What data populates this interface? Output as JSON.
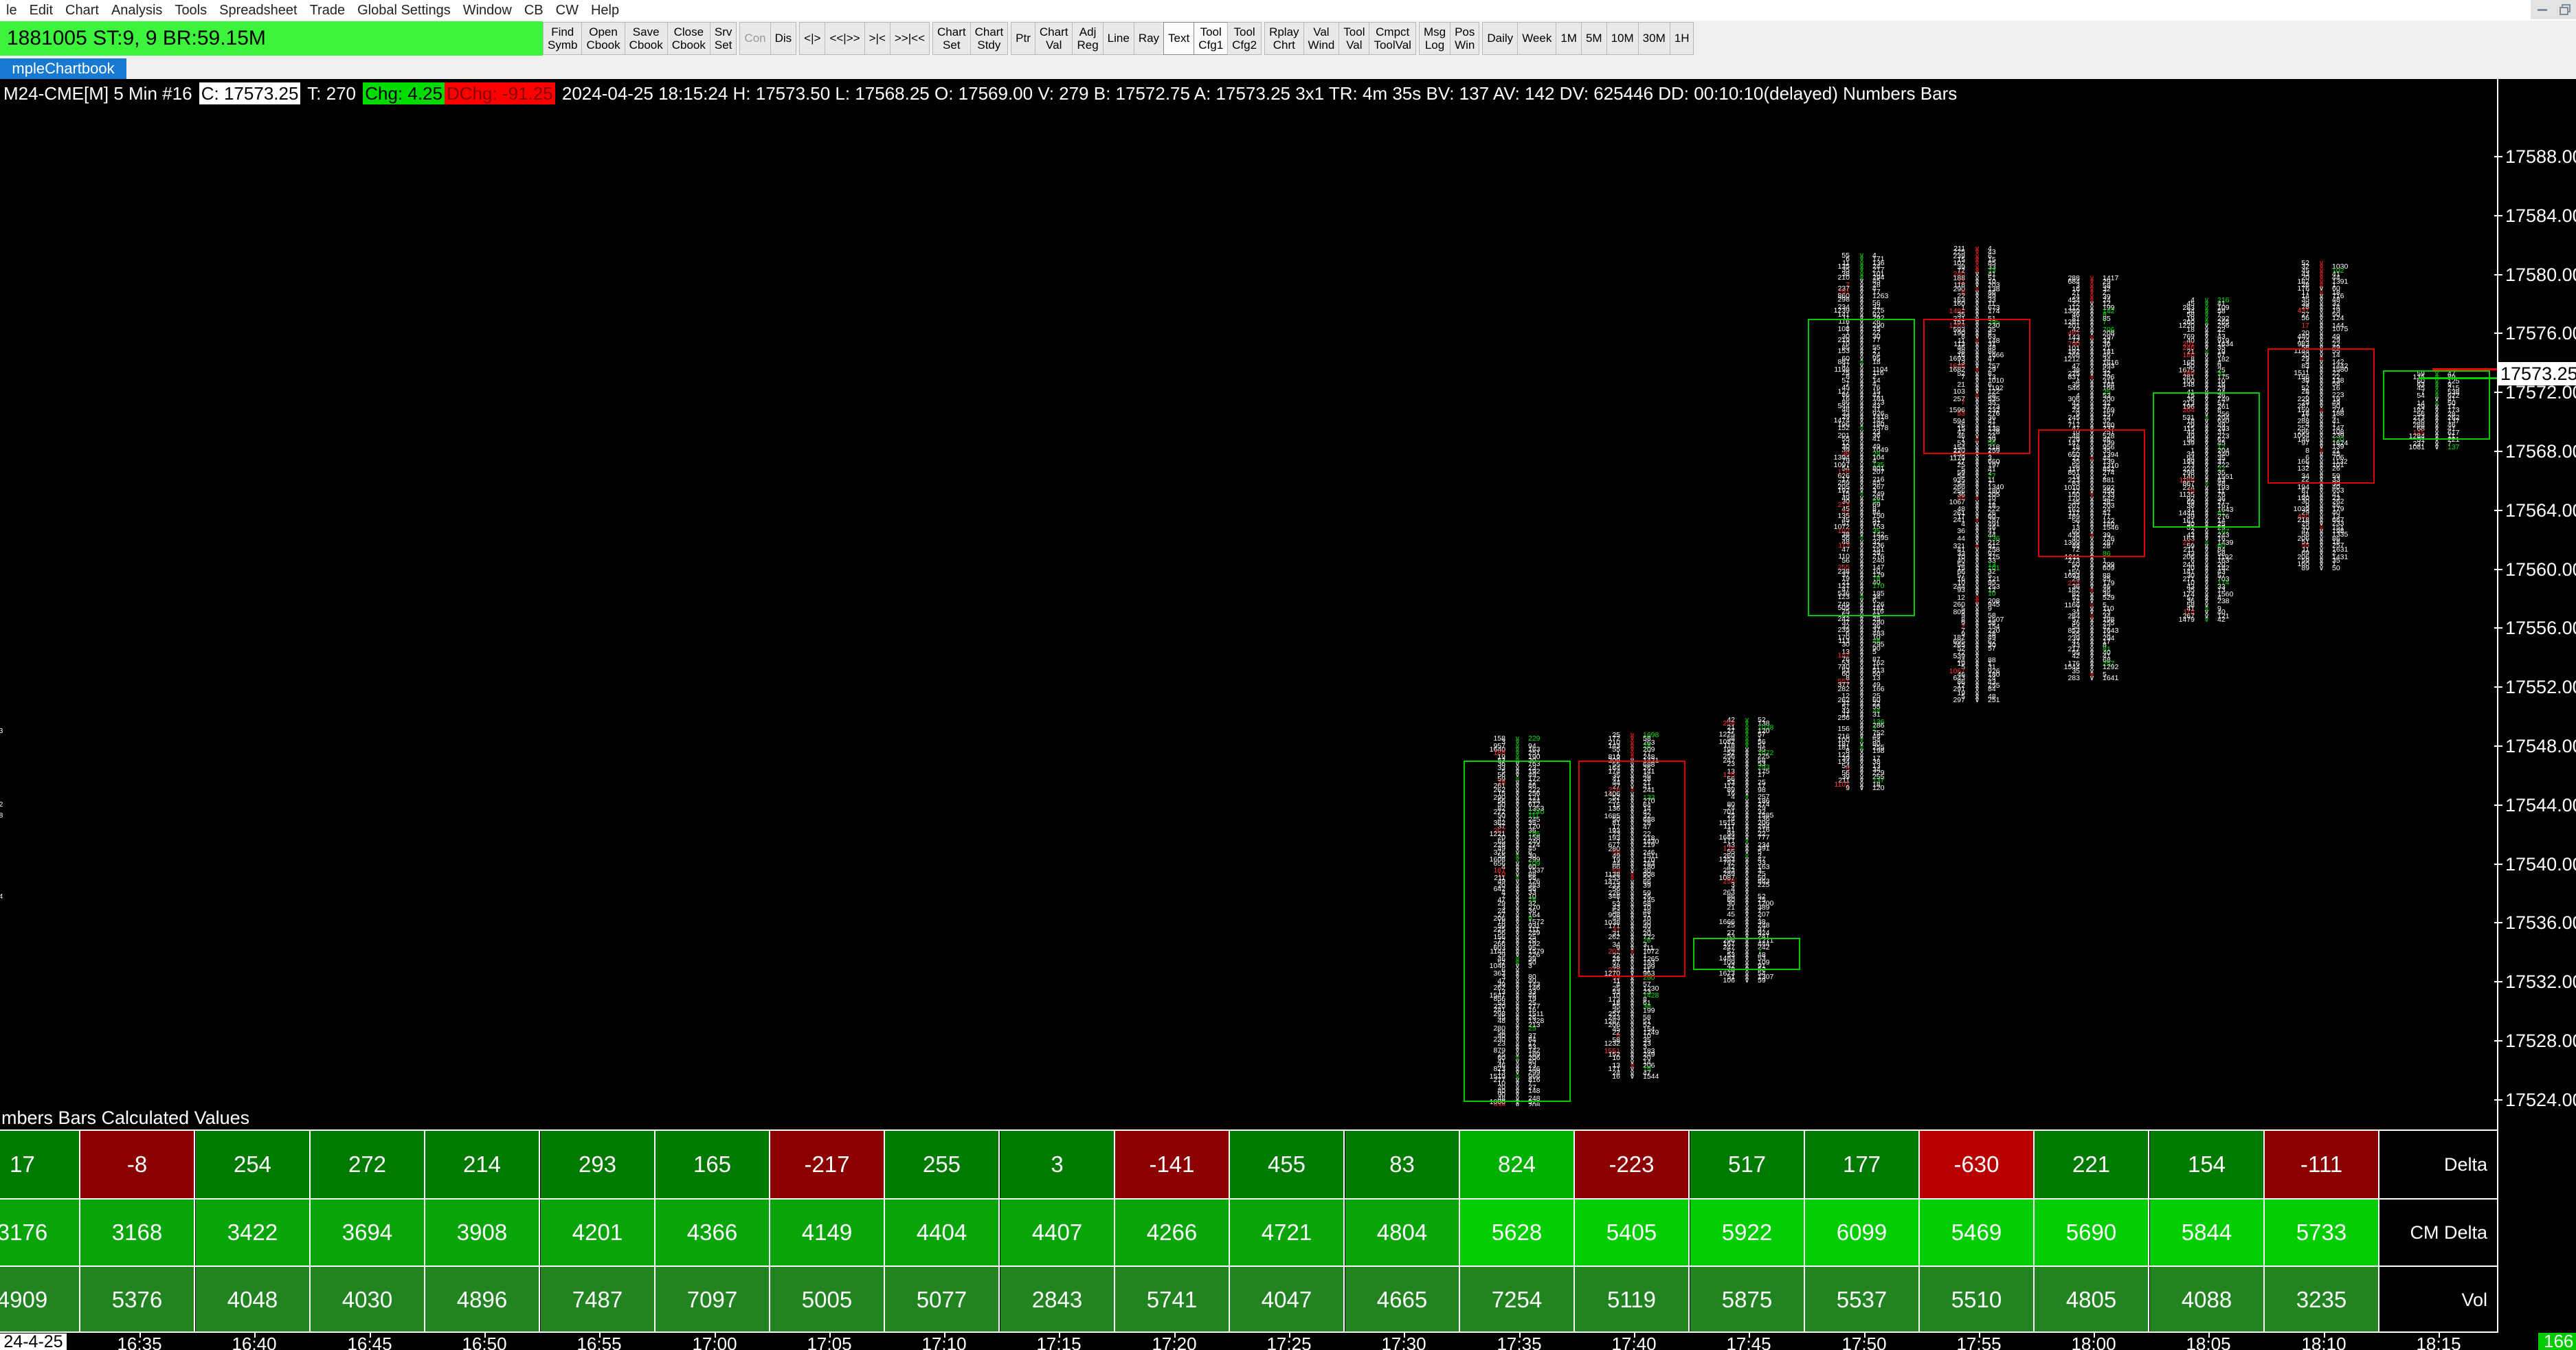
{
  "menu_bar": {
    "items": [
      "le",
      "Edit",
      "Chart",
      "Analysis",
      "Tools",
      "Spreadsheet",
      "Trade",
      "Global Settings",
      "Window",
      "CB",
      "CW",
      "Help"
    ]
  },
  "window_controls": {
    "minimize": "minimize",
    "restore": "restore"
  },
  "account_bar": {
    "text": "1881005  ST:9, 9  BR:59.15M",
    "bg": "#3df43d"
  },
  "toolbar": {
    "groups": [
      [
        "Find\nSymb",
        "Open\nCbook",
        "Save\nCbook",
        "Close\nCbook",
        "Srv\nSet"
      ],
      [
        "Con",
        "Dis"
      ],
      [
        "<|>",
        "<<|>>",
        ">|<",
        ">>|<<"
      ],
      [
        "Chart\nSet",
        "Chart\nStdy"
      ],
      [
        "Ptr",
        "Chart\nVal",
        "Adj\nReg",
        "Line",
        "Ray",
        "Text",
        "Tool\nCfg1",
        "Tool\nCfg2"
      ],
      [
        "Rplay\nChrt",
        "Val\nWind",
        "Tool\nVal",
        "Cmpct\nToolVal"
      ],
      [
        "Msg\nLog",
        "Pos\nWin"
      ],
      [
        "Daily",
        "Week",
        "1M",
        "5M",
        "10M",
        "30M",
        "1H"
      ]
    ],
    "active": [
      "Text",
      "Tool\nCfg1"
    ],
    "disabled": [
      "Con"
    ]
  },
  "tab": {
    "label": "mpleChartbook",
    "bg": "#1879d2"
  },
  "chart": {
    "header_segments": [
      {
        "text": "M24-CME[M]  5 Min  #16 "
      },
      {
        "text": "C: 17573.25",
        "fg": "#000000",
        "bg": "#ffffff"
      },
      {
        "text": " T: 270 "
      },
      {
        "text": "Chg: 4.25",
        "fg": "#000000",
        "bg": "#00dc00"
      },
      {
        "text": "DChg: -91.25",
        "fg": "#870000",
        "bg": "#ff0000"
      },
      {
        "text": " 2024-04-25 18:15:24 H: 17573.50 L: 17568.25 O: 17569.00 V: 279 B: 17572.75 A: 17573.25 3x1 TR: 4m 35s BV: 137 AV: 142 DV: 625446 DD: 00:10:10(delayed) Numbers Bars"
      }
    ],
    "price_axis": {
      "labels": [
        "17588.00",
        "17584.00",
        "17580.00",
        "17576.00",
        "17572.00",
        "17568.00",
        "17564.00",
        "17560.00",
        "17556.00",
        "17552.00",
        "17548.00",
        "17544.00",
        "17540.00",
        "17536.00",
        "17532.00",
        "17528.00",
        "17524.00"
      ],
      "top_price": 17588,
      "step": 4,
      "current_price": "17573.25"
    },
    "colors": {
      "up_box": "#00cc00",
      "down_box": "#de0000",
      "up_accent": "#00d800",
      "down_accent": "#ff2020",
      "bid_accent": "#ff3232",
      "ask_accent": "#00e400",
      "high_line": "#ff0000",
      "last_line": "#00d000"
    },
    "bars": [
      {
        "time": "",
        "dir": "up",
        "cx": -35,
        "box": null,
        "range": [
          17551.0,
          17536.0
        ]
      },
      {
        "time": "17:35",
        "dir": "up",
        "cx": 2208,
        "box": [
          17547.0,
          17524.0
        ],
        "range": [
          17548.75,
          17521.0
        ]
      },
      {
        "time": "17:40",
        "dir": "down",
        "cx": 2375,
        "box": [
          17547.0,
          17532.5
        ],
        "range": [
          17549.0,
          17525.5
        ]
      },
      {
        "time": "17:45",
        "dir": "up",
        "cx": 2542,
        "box": [
          17535.0,
          17533.0
        ],
        "range": [
          17550.0,
          17532.0
        ]
      },
      {
        "time": "17:50",
        "dir": "up",
        "cx": 2709,
        "box": [
          17577.0,
          17557.0
        ],
        "range": [
          17581.5,
          17545.0
        ]
      },
      {
        "time": "17:55",
        "dir": "down",
        "cx": 2877,
        "box": [
          17577.0,
          17568.0
        ],
        "range": [
          17582.0,
          17551.0
        ]
      },
      {
        "time": "18:00",
        "dir": "down",
        "cx": 3044,
        "box": [
          17569.5,
          17561.0
        ],
        "range": [
          17580.0,
          17552.5
        ]
      },
      {
        "time": "18:05",
        "dir": "up",
        "cx": 3211,
        "box": [
          17572.0,
          17563.0
        ],
        "range": [
          17578.5,
          17556.5
        ]
      },
      {
        "time": "18:10",
        "dir": "down",
        "cx": 3378,
        "box": [
          17575.0,
          17566.0
        ],
        "range": [
          17581.0,
          17560.0
        ]
      },
      {
        "time": "18:15",
        "dir": "up",
        "cx": 3546,
        "box": [
          17573.5,
          17569.0
        ],
        "range": [
          17573.5,
          17568.25
        ]
      }
    ]
  },
  "table": {
    "title": "mbers Bars Calculated Values",
    "colors": {
      "pos": "#007a00",
      "pos_bright": "#00b000",
      "neg": "#8b0000",
      "neg_bright": "#b80000",
      "cm": "#0aa50a",
      "cm_bright": "#00ce00",
      "vol": "#218421"
    },
    "rows": [
      {
        "label": "Delta",
        "kind": "delta",
        "values": [
          17,
          -8,
          254,
          272,
          214,
          293,
          165,
          -217,
          255,
          3,
          -141,
          455,
          83,
          824,
          -223,
          517,
          177,
          -630,
          221,
          154,
          -111
        ]
      },
      {
        "label": "CM Delta",
        "kind": "cm",
        "values": [
          3176,
          3168,
          3422,
          3694,
          3908,
          4201,
          4366,
          4149,
          4404,
          4407,
          4266,
          4721,
          4804,
          5628,
          5405,
          5922,
          6099,
          5469,
          5690,
          5844,
          5733
        ]
      },
      {
        "label": "Vol",
        "kind": "vol",
        "values": [
          4909,
          5376,
          4048,
          4030,
          4896,
          7487,
          7097,
          5005,
          5077,
          2843,
          5741,
          4047,
          4665,
          7254,
          5119,
          5875,
          5537,
          5510,
          4805,
          4088,
          3235
        ]
      }
    ],
    "time_axis": {
      "date_label": "24-4-25",
      "labels": [
        "16:35",
        "16:40",
        "16:45",
        "16:50",
        "16:55",
        "17:00",
        "17:05",
        "17:10",
        "17:15",
        "17:20",
        "17:25",
        "17:30",
        "17:35",
        "17:40",
        "17:45",
        "17:50",
        "17:55",
        "18:00",
        "18:05",
        "18:10",
        "18:15"
      ],
      "badge": "166"
    }
  },
  "chart_data": {
    "type": "table",
    "title": "Numbers Bars Calculated Values",
    "time_axis_labels": [
      "24-4-25",
      "16:35",
      "16:40",
      "16:45",
      "16:50",
      "16:55",
      "17:00",
      "17:05",
      "17:10",
      "17:15",
      "17:20",
      "17:25",
      "17:30",
      "17:35",
      "17:40",
      "17:45",
      "17:50",
      "17:55",
      "18:00",
      "18:05",
      "18:10",
      "18:15"
    ],
    "series": [
      {
        "name": "Delta",
        "values": [
          17,
          -8,
          254,
          272,
          214,
          293,
          165,
          -217,
          255,
          3,
          -141,
          455,
          83,
          824,
          -223,
          517,
          177,
          -630,
          221,
          154,
          -111
        ]
      },
      {
        "name": "CM Delta",
        "values": [
          3176,
          3168,
          3422,
          3694,
          3908,
          4201,
          4366,
          4149,
          4404,
          4407,
          4266,
          4721,
          4804,
          5628,
          5405,
          5922,
          6099,
          5469,
          5690,
          5844,
          5733
        ]
      },
      {
        "name": "Vol",
        "values": [
          4909,
          5376,
          4048,
          4030,
          4896,
          7487,
          7097,
          5005,
          5077,
          2843,
          5741,
          4047,
          4665,
          7254,
          5119,
          5875,
          5537,
          5510,
          4805,
          4088,
          3235
        ]
      }
    ],
    "current_bar_badge": "166",
    "price_axis_range": [
      17524,
      17588
    ],
    "current_price": 17573.25
  }
}
